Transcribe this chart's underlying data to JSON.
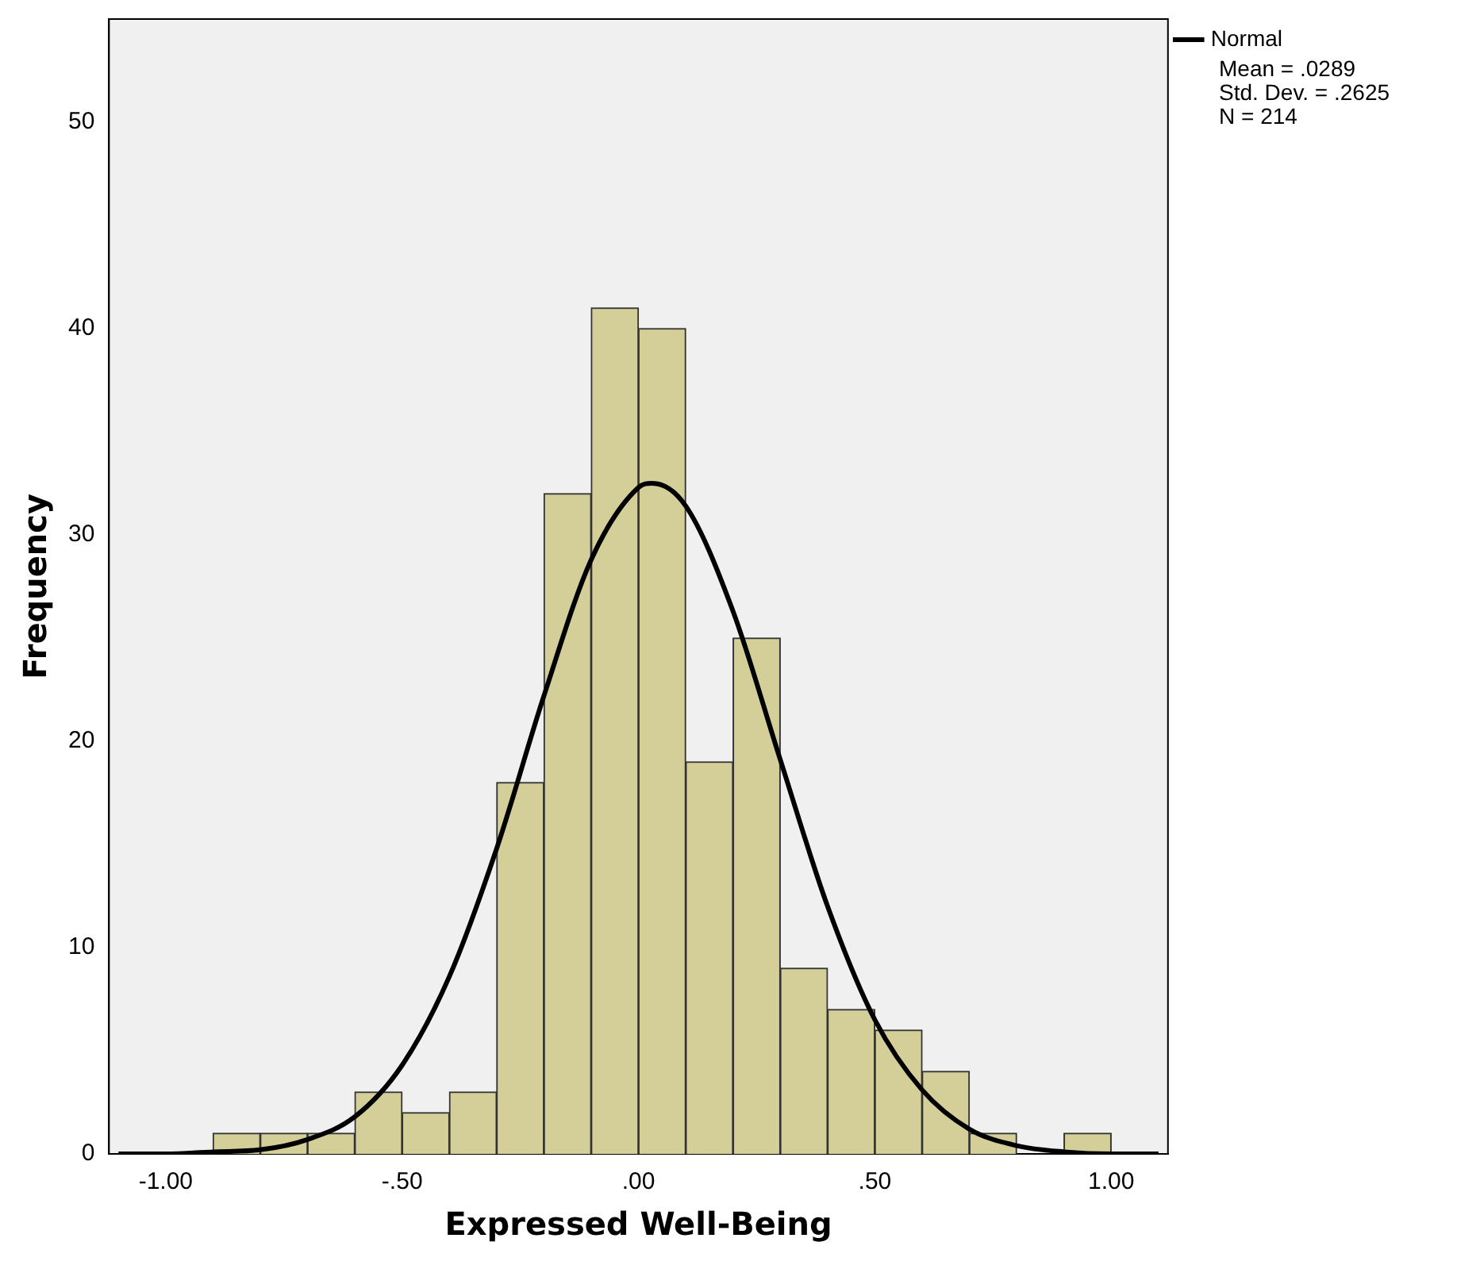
{
  "chart_data": {
    "type": "histogram",
    "xlabel": "Expressed Well-Being",
    "ylabel": "Frequency",
    "bins": [
      -0.9,
      -0.8,
      -0.7,
      -0.6,
      -0.5,
      -0.4,
      -0.3,
      -0.2,
      -0.1,
      0,
      0.1,
      0.2,
      0.3,
      0.4,
      0.5,
      0.6,
      0.7,
      0.8,
      0.9,
      1.0
    ],
    "values": [
      1,
      1,
      1,
      3,
      2,
      3,
      18,
      32,
      41,
      40,
      19,
      25,
      9,
      7,
      6,
      4,
      1,
      0,
      1
    ],
    "color": "#d4cf98",
    "series": [
      {
        "name": "Normal",
        "type": "line",
        "color": "#000000",
        "x": [
          -1.1,
          -1.0,
          -0.9,
          -0.8,
          -0.7,
          -0.6,
          -0.5,
          -0.4,
          -0.3,
          -0.2,
          -0.1,
          0,
          0.0289,
          0.1,
          0.2,
          0.3,
          0.4,
          0.5,
          0.6,
          0.7,
          0.8,
          0.9,
          1.0,
          1.1
        ],
        "values": [
          0,
          0,
          0.1,
          0.2,
          0.7,
          1.8,
          4.3,
          8.6,
          14.8,
          22.2,
          28.8,
          32.3,
          32.5,
          31.4,
          26.3,
          19.1,
          12,
          6.5,
          3.1,
          1.2,
          0.4,
          0.1,
          0,
          0
        ]
      }
    ],
    "xlim": [
      -1.12,
      1.12
    ],
    "xticks": [
      {
        "value": -1,
        "label": "-1.00"
      },
      {
        "value": -0.5,
        "label": "-.50"
      },
      {
        "value": 0,
        "label": ".00"
      },
      {
        "value": 0.5,
        "label": ".50"
      },
      {
        "value": 1,
        "label": "1.00"
      }
    ],
    "ylim": [
      0,
      55
    ],
    "yticks": [
      0,
      10,
      20,
      30,
      40,
      50
    ],
    "grid": false,
    "legend": "top right",
    "marker": "none",
    "line_style": "solid",
    "annotations": [
      "Mean = .0289",
      "Std. Dev. = .2625",
      "N = 214"
    ]
  }
}
